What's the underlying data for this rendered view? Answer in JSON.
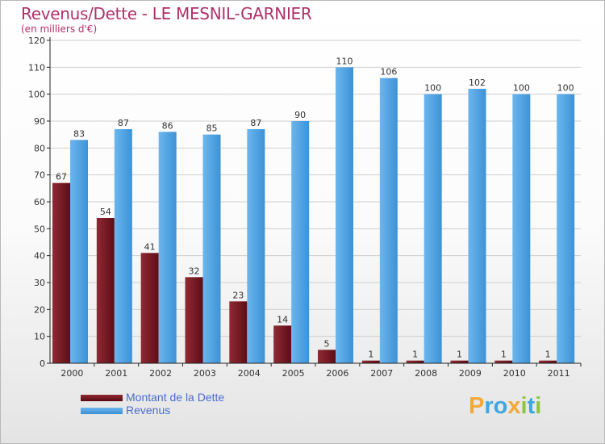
{
  "title": "Revenus/Dette - LE MESNIL-GARNIER",
  "subtitle": "(en milliers d'€)",
  "logo": {
    "text": "Proxiti",
    "letters": [
      {
        "ch": "P",
        "color": "#f2a93b"
      },
      {
        "ch": "r",
        "color": "#3fa6e0"
      },
      {
        "ch": "o",
        "color": "#3fa6e0"
      },
      {
        "ch": "x",
        "color": "#f2a93b"
      },
      {
        "ch": "i",
        "color": "#8cc63f"
      },
      {
        "ch": "t",
        "color": "#3fa6e0"
      },
      {
        "ch": "i",
        "color": "#8cc63f"
      }
    ]
  },
  "legend": {
    "dette_label": "Montant de la Dette",
    "revenus_label": "Revenus"
  },
  "colors": {
    "dette": "#7a1a22",
    "dette_dark": "#5a0a12",
    "revenus": "#5aa9e6",
    "revenus_dark": "#3d8fd2",
    "axis": "#222222",
    "grid": "#cfcfcf",
    "text": "#333333"
  },
  "chart_data": {
    "type": "bar",
    "title": "Revenus/Dette - LE MESNIL-GARNIER",
    "ylabel": "(en milliers d'€)",
    "xlabel": "",
    "ylim": [
      0,
      120
    ],
    "yticks": [
      0,
      10,
      20,
      30,
      40,
      50,
      60,
      70,
      80,
      90,
      100,
      110,
      120
    ],
    "grid": true,
    "legend_position": "bottom-left",
    "categories": [
      "2000",
      "2001",
      "2002",
      "2003",
      "2004",
      "2005",
      "2006",
      "2007",
      "2008",
      "2009",
      "2010",
      "2011"
    ],
    "series": [
      {
        "name": "Montant de la Dette",
        "values": [
          67,
          54,
          41,
          32,
          23,
          14,
          5,
          1,
          1,
          1,
          1,
          1
        ]
      },
      {
        "name": "Revenus",
        "values": [
          83,
          87,
          86,
          85,
          87,
          90,
          110,
          106,
          100,
          102,
          100,
          100
        ]
      }
    ]
  }
}
